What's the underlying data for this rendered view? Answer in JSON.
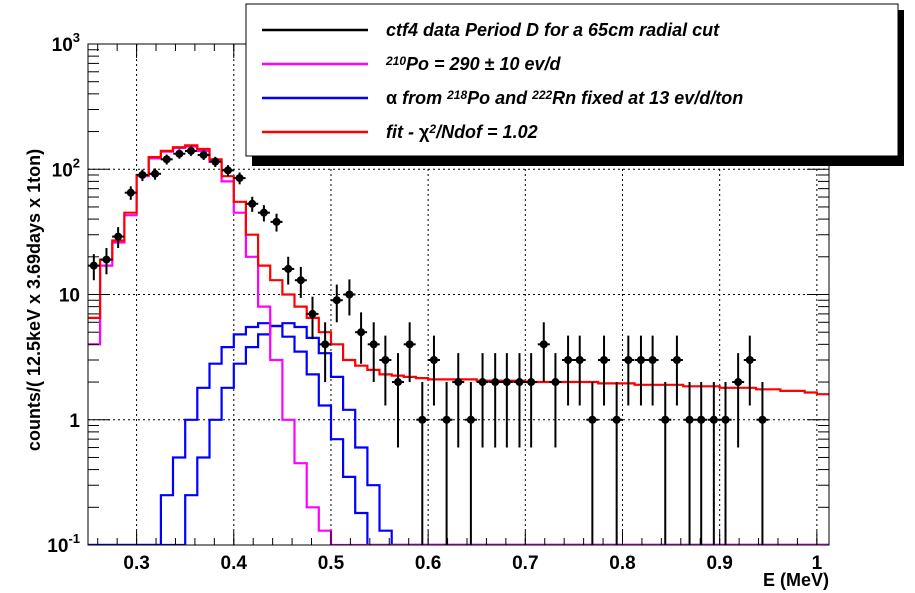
{
  "chart_data": {
    "type": "line",
    "xlabel": "E (MeV)",
    "ylabel": "counts/( 12.5keV x 3.69days x 1ton)",
    "xlim": [
      0.25,
      1.0125
    ],
    "ylim": [
      0.1,
      1000
    ],
    "yscale": "log",
    "grid": true,
    "legend_position": "top-right",
    "x_ticks": [
      "0.3",
      "0.4",
      "0.5",
      "0.6",
      "0.7",
      "0.8",
      "0.9",
      "1"
    ],
    "y_ticks": [
      {
        "value": 0.1,
        "base": "10",
        "exp": "-1"
      },
      {
        "value": 1,
        "base": "1",
        "exp": ""
      },
      {
        "value": 10,
        "base": "10",
        "exp": ""
      },
      {
        "value": 100,
        "base": "10",
        "exp": "2"
      },
      {
        "value": 1000,
        "base": "10",
        "exp": "3"
      }
    ],
    "legend": [
      {
        "color": "#000000",
        "parts": [
          {
            "t": "ctf4 data Period D for a 65cm radial cut"
          }
        ]
      },
      {
        "color": "#ff00ff",
        "parts": [
          {
            "t": "210",
            "sup": true
          },
          {
            "t": "Po = 290 "
          },
          {
            "t": "±",
            "upright": true
          },
          {
            "t": " 10 ev/d"
          }
        ]
      },
      {
        "color": "#0000ff",
        "parts": [
          {
            "t": "α",
            "upright": true
          },
          {
            "t": " from "
          },
          {
            "t": "218",
            "sup": true
          },
          {
            "t": "Po and "
          },
          {
            "t": "222",
            "sup": true
          },
          {
            "t": "Rn fixed at 13 ev/d/ton"
          }
        ]
      },
      {
        "color": "#ff0000",
        "parts": [
          {
            "t": "fit - "
          },
          {
            "t": "χ",
            "upright": true
          },
          {
            "t": "2",
            "sup": true
          },
          {
            "t": "/Ndof = 1.02"
          }
        ]
      }
    ],
    "series": [
      {
        "name": "ctf4 data Period D for a 65cm radial cut",
        "kind": "points",
        "color": "#000000",
        "x": [
          0.256,
          0.269,
          0.281,
          0.294,
          0.306,
          0.319,
          0.331,
          0.344,
          0.356,
          0.369,
          0.381,
          0.394,
          0.406,
          0.419,
          0.431,
          0.444,
          0.456,
          0.469,
          0.481,
          0.494,
          0.506,
          0.519,
          0.531,
          0.544,
          0.556,
          0.569,
          0.581,
          0.594,
          0.606,
          0.619,
          0.631,
          0.644,
          0.656,
          0.669,
          0.681,
          0.694,
          0.706,
          0.719,
          0.731,
          0.744,
          0.756,
          0.769,
          0.781,
          0.794,
          0.806,
          0.819,
          0.831,
          0.844,
          0.856,
          0.869,
          0.881,
          0.894,
          0.906,
          0.919,
          0.931,
          0.944
        ],
        "y": [
          17,
          19,
          29,
          65,
          90,
          92,
          120,
          133,
          140,
          130,
          115,
          98,
          85,
          53,
          45,
          38,
          16,
          13,
          7,
          4,
          9,
          10,
          5,
          4,
          3,
          2,
          4,
          1,
          3,
          1,
          2,
          1,
          2,
          2,
          2,
          2,
          2,
          4,
          2,
          3,
          3,
          1,
          3,
          1,
          3,
          3,
          3,
          1,
          3,
          1,
          1,
          1,
          1,
          2,
          3,
          1
        ],
        "err_low": [
          4,
          4.5,
          5.5,
          8,
          9.5,
          9.5,
          11,
          11.5,
          12,
          11.5,
          10.7,
          9.9,
          9.2,
          7.3,
          6.7,
          6.2,
          4,
          3.6,
          2.6,
          2,
          3,
          3.2,
          2.2,
          2,
          1.7,
          1.4,
          2,
          1,
          1.7,
          1,
          1.4,
          1,
          1.4,
          1.4,
          1.4,
          1.4,
          1.4,
          2,
          1.4,
          1.7,
          1.7,
          1,
          1.7,
          1,
          1.7,
          1.7,
          1.7,
          1,
          1.7,
          1,
          1,
          1,
          1,
          1.4,
          1.7,
          1
        ],
        "err_high": [
          4,
          4.5,
          5.5,
          8,
          9.5,
          9.5,
          11,
          11.5,
          12,
          11.5,
          10.7,
          9.9,
          9.2,
          7.3,
          6.7,
          6.2,
          4,
          3.6,
          2.6,
          2,
          3,
          3.2,
          2.2,
          2,
          1.7,
          1.4,
          2,
          1,
          1.7,
          1,
          1.4,
          1,
          1.4,
          1.4,
          1.4,
          1.4,
          1.4,
          2,
          1.4,
          1.7,
          1.7,
          1,
          1.7,
          1,
          1.7,
          1.7,
          1.7,
          1,
          1.7,
          1,
          1,
          1,
          1,
          1.4,
          1.7,
          1
        ]
      },
      {
        "name": "fit - χ2/Ndof = 1.02",
        "kind": "step",
        "color": "#ff0000",
        "x_start": 0.25,
        "bin_width": 0.0125,
        "values": [
          6.5,
          19,
          27,
          45,
          90,
          125,
          140,
          150,
          155,
          145,
          120,
          88,
          55,
          30,
          17,
          13,
          10,
          8,
          6.5,
          5,
          4,
          3,
          2.7,
          2.5,
          2.3,
          2.25,
          2.2,
          2.15,
          2.1,
          2.1,
          2.1,
          2.1,
          2.05,
          2.05,
          2.05,
          2.05,
          2.0,
          2.0,
          2.0,
          2.0,
          2.0,
          2.0,
          1.95,
          1.95,
          1.95,
          1.9,
          1.9,
          1.9,
          1.9,
          1.85,
          1.85,
          1.85,
          1.8,
          1.8,
          1.8,
          1.75,
          1.75,
          1.7,
          1.7,
          1.65,
          1.6
        ]
      },
      {
        "name": "210Po = 290 ± 10 ev/d",
        "kind": "step",
        "color": "#ff00ff",
        "x_start": 0.25,
        "bin_width": 0.0125,
        "values": [
          4,
          17,
          26,
          43,
          88,
          122,
          138,
          148,
          152,
          140,
          115,
          80,
          45,
          20,
          8,
          3,
          1,
          0.45,
          0.2,
          0.13,
          0.1,
          0.1,
          0.1,
          0.1,
          0.1,
          0.1,
          0.1,
          0.1,
          0.1,
          0.1,
          0.1,
          0.1,
          0.1,
          0.1,
          0.1,
          0.1,
          0.1,
          0.1,
          0.1,
          0.1,
          0.1,
          0.1,
          0.1,
          0.1,
          0.1,
          0.1,
          0.1,
          0.1,
          0.1,
          0.1,
          0.1,
          0.1,
          0.1,
          0.1,
          0.1,
          0.1,
          0.1,
          0.1,
          0.1,
          0.1,
          0.1
        ]
      },
      {
        "name": "α from 218Po and 222Rn fixed at 13 ev/d/ton",
        "kind": "step",
        "color": "#0000ff",
        "x_start": 0.25,
        "bin_width": 0.0125,
        "values": [
          0.1,
          0.1,
          0.1,
          0.1,
          0.1,
          0.1,
          0.25,
          0.5,
          1.0,
          1.8,
          2.8,
          3.8,
          4.8,
          5.5,
          5.9,
          5.6,
          4.6,
          3.5,
          2.3,
          1.3,
          0.7,
          0.35,
          0.18,
          0.1,
          0.1,
          0.1,
          0.1,
          0.1,
          0.1,
          0.1,
          0.1,
          0.1,
          0.1,
          0.1,
          0.1,
          0.1,
          0.1,
          0.1,
          0.1,
          0.1,
          0.1,
          0.1,
          0.1,
          0.1,
          0.1,
          0.1,
          0.1,
          0.1,
          0.1,
          0.1,
          0.1,
          0.1,
          0.1,
          0.1,
          0.1,
          0.1,
          0.1,
          0.1,
          0.1,
          0.1,
          0.1
        ]
      },
      {
        "name": "α from 218Po and 222Rn fixed at 13 ev/d/ton",
        "kind": "step",
        "color": "#0000ff",
        "x_start": 0.25,
        "bin_width": 0.0125,
        "values": [
          0.1,
          0.1,
          0.1,
          0.1,
          0.1,
          0.1,
          0.1,
          0.1,
          0.25,
          0.5,
          1.0,
          1.8,
          2.8,
          3.8,
          4.8,
          5.6,
          5.9,
          5.5,
          4.5,
          3.4,
          2.2,
          1.2,
          0.6,
          0.3,
          0.13,
          0.1,
          0.1,
          0.1,
          0.1,
          0.1,
          0.1,
          0.1,
          0.1,
          0.1,
          0.1,
          0.1,
          0.1,
          0.1,
          0.1,
          0.1,
          0.1,
          0.1,
          0.1,
          0.1,
          0.1,
          0.1,
          0.1,
          0.1,
          0.1,
          0.1,
          0.1,
          0.1,
          0.1,
          0.1,
          0.1,
          0.1,
          0.1,
          0.1,
          0.1,
          0.1,
          0.1
        ]
      }
    ]
  }
}
